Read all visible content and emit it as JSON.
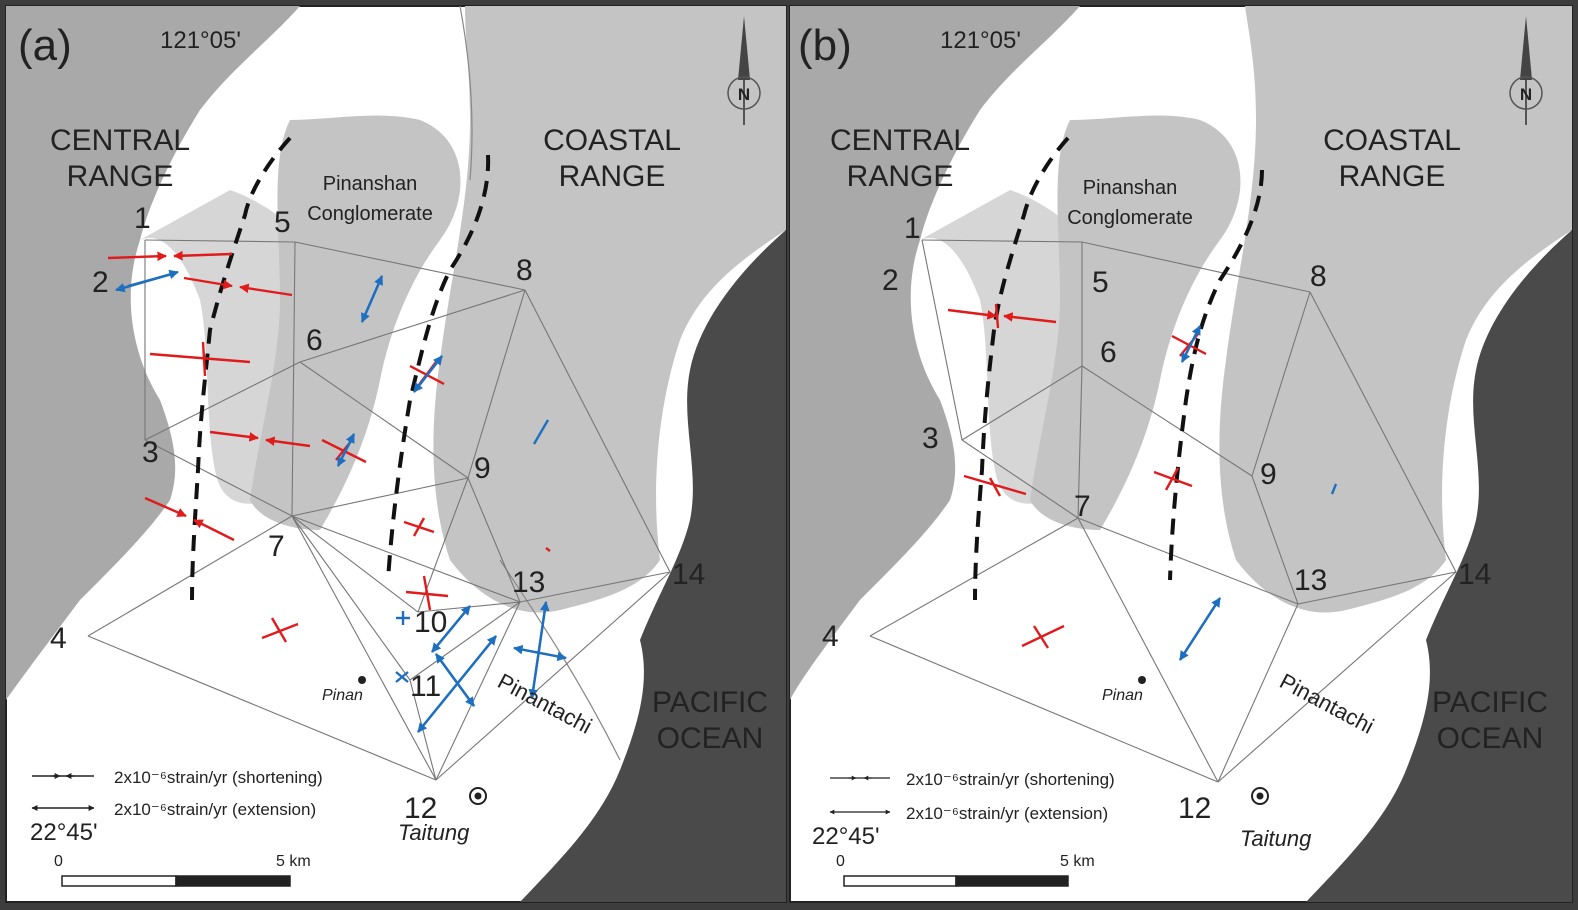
{
  "panels": [
    {
      "id": "a",
      "label": "(a)",
      "longitude": "121°05'",
      "latitude": "22°45'",
      "regions": {
        "central": [
          "CENTRAL",
          "RANGE"
        ],
        "coastal": [
          "COASTAL",
          "RANGE"
        ],
        "formation": [
          "Pinanshan",
          "Conglomerate"
        ],
        "ocean": [
          "PACIFIC",
          "OCEAN"
        ],
        "river": "Pinantachi",
        "towns": [
          "Pinan",
          "Taitung"
        ]
      },
      "stations": [
        "1",
        "2",
        "3",
        "4",
        "5",
        "6",
        "7",
        "8",
        "9",
        "10",
        "11",
        "12",
        "13",
        "14"
      ],
      "legend": {
        "shortening": "2x10⁻⁶strain/yr (shortening)",
        "extension": "2x10⁻⁶strain/yr (extension)"
      },
      "scale": {
        "start": "0",
        "end": "5 km"
      },
      "north": "N",
      "colors": {
        "shortening": "#e01b1b",
        "extension": "#1f6fc0"
      }
    },
    {
      "id": "b",
      "label": "(b)",
      "longitude": "121°05'",
      "latitude": "22°45'",
      "regions": {
        "central": [
          "CENTRAL",
          "RANGE"
        ],
        "coastal": [
          "COASTAL",
          "RANGE"
        ],
        "formation": [
          "Pinanshan",
          "Conglomerate"
        ],
        "ocean": [
          "PACIFIC",
          "OCEAN"
        ],
        "river": "Pinantachi",
        "towns": [
          "Pinan",
          "Taitung"
        ]
      },
      "stations": [
        "1",
        "2",
        "3",
        "4",
        "5",
        "6",
        "7",
        "8",
        "9",
        "12",
        "13",
        "14"
      ],
      "legend": {
        "shortening": "2x10⁻⁶strain/yr (shortening)",
        "extension": "2x10⁻⁶strain/yr (extension)"
      },
      "scale": {
        "start": "0",
        "end": "5 km"
      },
      "north": "N",
      "colors": {
        "shortening": "#e01b1b",
        "extension": "#1f6fc0"
      }
    }
  ]
}
